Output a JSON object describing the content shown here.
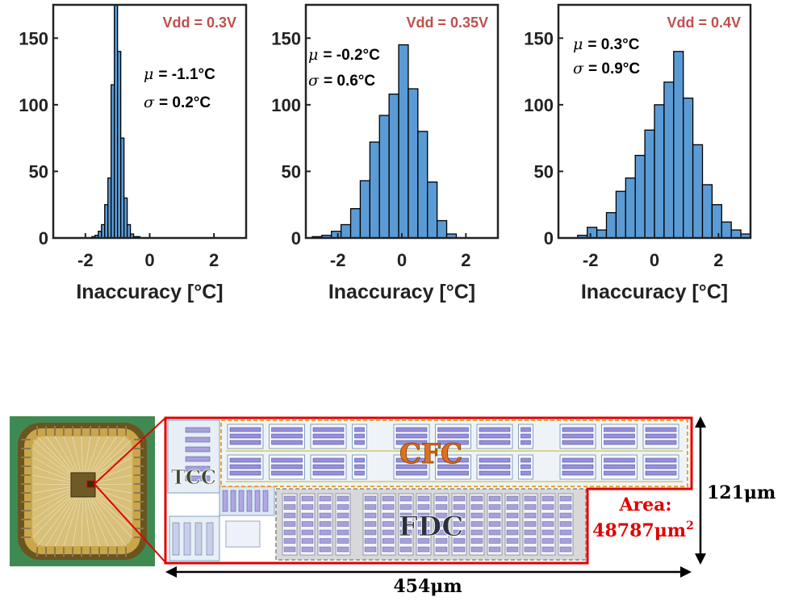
{
  "chart_data": [
    {
      "type": "bar",
      "title": "Vdd = 0.3V",
      "xlabel": "Inaccuracy [°C]",
      "ylabel": "",
      "xlim": [
        -3,
        3
      ],
      "ylim": [
        0,
        175
      ],
      "xticks": [
        "-2",
        "0",
        "2"
      ],
      "yticks": [
        "0",
        "50",
        "100",
        "150"
      ],
      "bin_width": 0.1,
      "x": [
        -1.75,
        -1.65,
        -1.55,
        -1.45,
        -1.35,
        -1.25,
        -1.15,
        -1.05,
        -0.95,
        -0.85,
        -0.75,
        -0.65,
        -0.55,
        -0.45,
        -0.35
      ],
      "values": [
        1,
        2,
        5,
        10,
        25,
        45,
        115,
        175,
        140,
        75,
        30,
        10,
        3,
        1,
        1
      ],
      "stats": {
        "mu": "= -1.1°C",
        "sigma": "= 0.2°C"
      },
      "bar_color": "#5b9bd5"
    },
    {
      "type": "bar",
      "title": "Vdd = 0.35V",
      "xlabel": "Inaccuracy [°C]",
      "ylabel": "",
      "xlim": [
        -3,
        3
      ],
      "ylim": [
        0,
        175
      ],
      "xticks": [
        "-2",
        "0",
        "2"
      ],
      "yticks": [
        "0",
        "50",
        "100",
        "150"
      ],
      "bin_width": 0.3,
      "x": [
        -2.65,
        -2.35,
        -2.05,
        -1.75,
        -1.45,
        -1.15,
        -0.85,
        -0.55,
        -0.25,
        0.05,
        0.35,
        0.65,
        0.95,
        1.25,
        1.55
      ],
      "values": [
        1,
        2,
        5,
        10,
        22,
        43,
        72,
        92,
        108,
        145,
        112,
        80,
        42,
        13,
        3
      ],
      "stats": {
        "mu": "= -0.2°C",
        "sigma": "= 0.6°C"
      },
      "bar_color": "#5b9bd5"
    },
    {
      "type": "bar",
      "title": "Vdd = 0.4V",
      "xlabel": "Inaccuracy [°C]",
      "ylabel": "",
      "xlim": [
        -3,
        3
      ],
      "ylim": [
        0,
        175
      ],
      "xticks": [
        "-2",
        "0",
        "2"
      ],
      "yticks": [
        "0",
        "50",
        "100",
        "150"
      ],
      "bin_width": 0.3,
      "x": [
        -2.25,
        -1.95,
        -1.65,
        -1.35,
        -1.05,
        -0.75,
        -0.45,
        -0.15,
        0.15,
        0.45,
        0.75,
        1.05,
        1.35,
        1.65,
        1.95,
        2.25,
        2.55,
        2.85
      ],
      "values": [
        2,
        8,
        6,
        19,
        35,
        45,
        62,
        81,
        100,
        117,
        140,
        105,
        70,
        40,
        25,
        12,
        6,
        3
      ],
      "stats": {
        "mu": "= 0.3°C",
        "sigma": "= 0.9°C"
      },
      "bar_color": "#5b9bd5"
    }
  ],
  "layout_figure": {
    "blocks": {
      "tcc": "TCC",
      "cfc": "CFC",
      "fdc": "FDC"
    },
    "height_label": "121μm",
    "width_label": "454μm",
    "area_label": "Area:",
    "area_value": "48787μm",
    "area_exp": "2",
    "colors": {
      "outline": "#e00000",
      "cfc_text": "#e07020",
      "tcc_text": "#3a4a2a",
      "fdc_text": "#2a3140"
    }
  }
}
